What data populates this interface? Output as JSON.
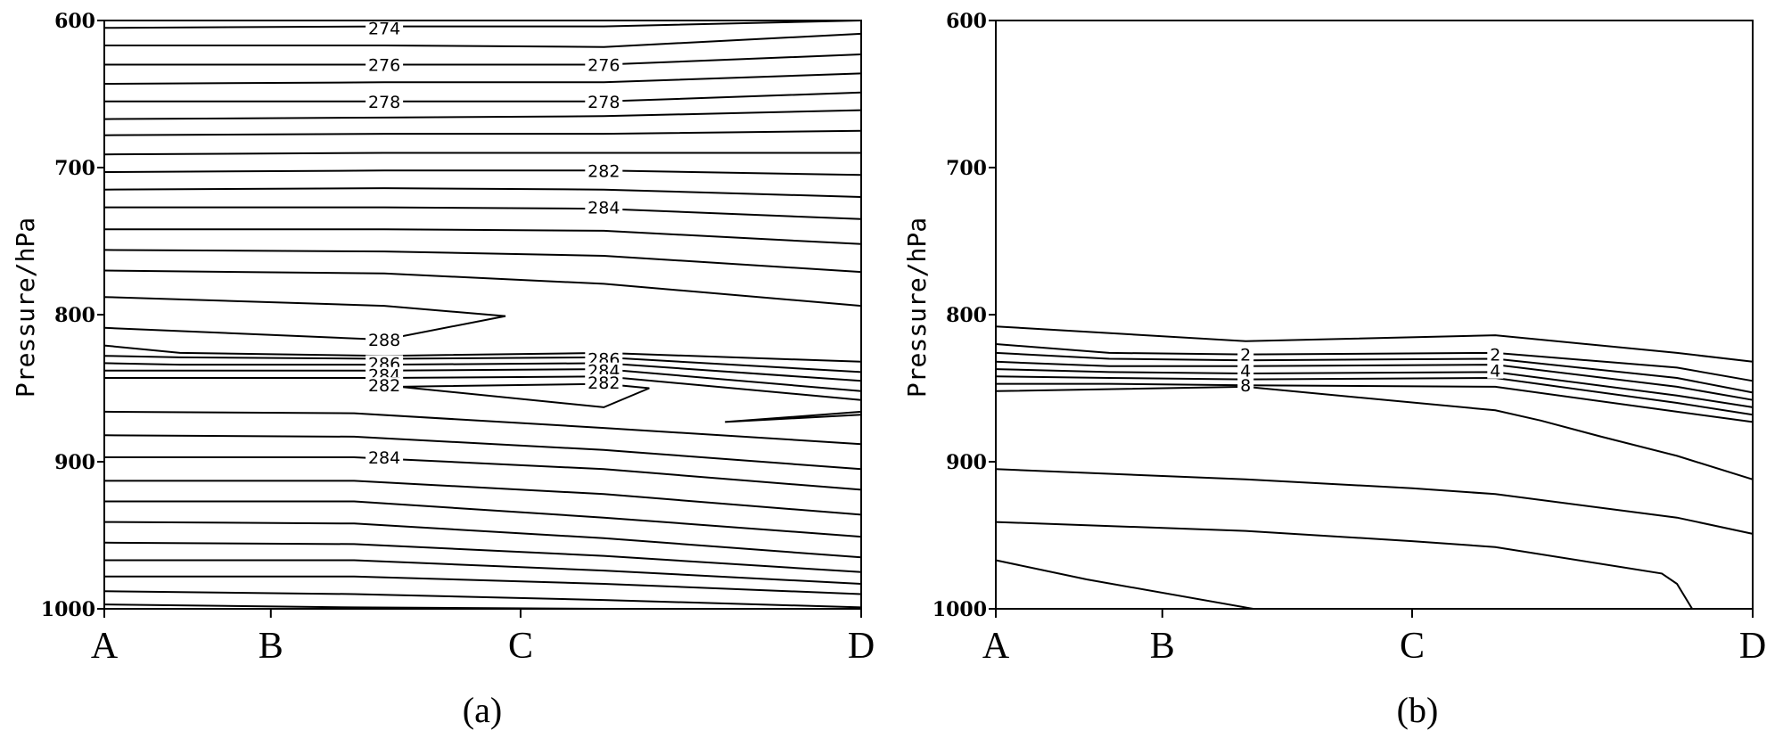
{
  "chart_data": [
    {
      "type": "contour",
      "panel_label": "(a)",
      "ylabel": "Pressure/hPa",
      "y_axis": {
        "range": [
          1000,
          600
        ],
        "inverted": true,
        "ticks": [
          "600",
          "700",
          "800",
          "900",
          "1000"
        ]
      },
      "x_axis": {
        "categories": [
          "A",
          "B",
          "C",
          "D"
        ],
        "positions": [
          0,
          0.22,
          0.55,
          1.0
        ]
      },
      "contour_labels": [
        {
          "text": "274",
          "x": 0.37,
          "p": 605
        },
        {
          "text": "276",
          "x": 0.37,
          "p": 630
        },
        {
          "text": "276",
          "x": 0.66,
          "p": 630
        },
        {
          "text": "278",
          "x": 0.37,
          "p": 655
        },
        {
          "text": "278",
          "x": 0.66,
          "p": 655
        },
        {
          "text": "282",
          "x": 0.66,
          "p": 702
        },
        {
          "text": "284",
          "x": 0.66,
          "p": 727
        },
        {
          "text": "288",
          "x": 0.37,
          "p": 817
        },
        {
          "text": "286",
          "x": 0.37,
          "p": 833
        },
        {
          "text": "284",
          "x": 0.37,
          "p": 841
        },
        {
          "text": "282",
          "x": 0.37,
          "p": 848
        },
        {
          "text": "286",
          "x": 0.66,
          "p": 830
        },
        {
          "text": "284",
          "x": 0.66,
          "p": 838
        },
        {
          "text": "282",
          "x": 0.66,
          "p": 846
        },
        {
          "text": "284",
          "x": 0.37,
          "p": 897
        }
      ],
      "contours": [
        {
          "x": [
            0,
            0.37,
            0.66,
            1.0
          ],
          "p": [
            605,
            604,
            604,
            600
          ]
        },
        {
          "x": [
            0,
            0.37,
            0.66,
            1.0
          ],
          "p": [
            617,
            617,
            618,
            609
          ]
        },
        {
          "x": [
            0,
            0.37,
            0.66,
            1.0
          ],
          "p": [
            630,
            630,
            630,
            623
          ]
        },
        {
          "x": [
            0,
            0.37,
            0.66,
            1.0
          ],
          "p": [
            643,
            642,
            642,
            636
          ]
        },
        {
          "x": [
            0,
            0.37,
            0.66,
            1.0
          ],
          "p": [
            655,
            655,
            655,
            649
          ]
        },
        {
          "x": [
            0,
            0.37,
            0.66,
            1.0
          ],
          "p": [
            667,
            666,
            665,
            661
          ]
        },
        {
          "x": [
            0,
            0.37,
            0.66,
            1.0
          ],
          "p": [
            678,
            677,
            677,
            675
          ]
        },
        {
          "x": [
            0,
            0.37,
            0.66,
            1.0
          ],
          "p": [
            691,
            690,
            690,
            690
          ]
        },
        {
          "x": [
            0,
            0.37,
            0.66,
            1.0
          ],
          "p": [
            703,
            702,
            702,
            705
          ]
        },
        {
          "x": [
            0,
            0.37,
            0.66,
            1.0
          ],
          "p": [
            715,
            714,
            715,
            720
          ]
        },
        {
          "x": [
            0,
            0.37,
            0.66,
            1.0
          ],
          "p": [
            727,
            727,
            728,
            735
          ]
        },
        {
          "x": [
            0,
            0.37,
            0.66,
            1.0
          ],
          "p": [
            742,
            742,
            743,
            752
          ]
        },
        {
          "x": [
            0,
            0.37,
            0.66,
            1.0
          ],
          "p": [
            756,
            757,
            760,
            771
          ]
        },
        {
          "x": [
            0,
            0.37,
            0.66,
            1.0
          ],
          "p": [
            770,
            772,
            779,
            794
          ]
        },
        {
          "x": [
            0,
            0.37,
            0.53,
            0.37,
            0
          ],
          "p": [
            788,
            794,
            801,
            817,
            809
          ]
        },
        {
          "x": [
            0,
            0.1,
            0.37,
            0.66,
            1.0
          ],
          "p": [
            821,
            826,
            828,
            826,
            832
          ]
        },
        {
          "x": [
            0,
            0.1,
            0.37,
            0.66,
            1.0
          ],
          "p": [
            828,
            829,
            830,
            829,
            839
          ]
        },
        {
          "x": [
            0,
            0.1,
            0.37,
            0.66,
            1.0
          ],
          "p": [
            833,
            834,
            834,
            833,
            845
          ]
        },
        {
          "x": [
            0,
            0.1,
            0.37,
            0.66,
            1.0
          ],
          "p": [
            838,
            838,
            838,
            837,
            852
          ]
        },
        {
          "x": [
            0,
            0.1,
            0.37,
            0.66,
            1.0
          ],
          "p": [
            843,
            843,
            843,
            842,
            858
          ]
        },
        {
          "x": [
            0.39,
            0.66,
            0.72,
            0.66,
            0.39
          ],
          "p": [
            849,
            847,
            850,
            863,
            849
          ]
        },
        {
          "x": [
            1.0,
            0.82,
            1.0
          ],
          "p": [
            866,
            873,
            868
          ]
        },
        {
          "x": [
            0,
            0.33,
            0.66,
            1.0
          ],
          "p": [
            866,
            867,
            877,
            888
          ]
        },
        {
          "x": [
            0,
            0.33,
            0.66,
            1.0
          ],
          "p": [
            882,
            883,
            892,
            905
          ]
        },
        {
          "x": [
            0,
            0.33,
            0.66,
            1.0
          ],
          "p": [
            897,
            897,
            905,
            919
          ]
        },
        {
          "x": [
            0,
            0.33,
            0.66,
            1.0
          ],
          "p": [
            913,
            913,
            922,
            936
          ]
        },
        {
          "x": [
            0,
            0.33,
            0.66,
            1.0
          ],
          "p": [
            927,
            927,
            938,
            951
          ]
        },
        {
          "x": [
            0,
            0.33,
            0.66,
            1.0
          ],
          "p": [
            941,
            942,
            952,
            965
          ]
        },
        {
          "x": [
            0,
            0.33,
            0.66,
            1.0
          ],
          "p": [
            955,
            956,
            964,
            975
          ]
        },
        {
          "x": [
            0,
            0.33,
            0.66,
            1.0
          ],
          "p": [
            967,
            967,
            974,
            983
          ]
        },
        {
          "x": [
            0,
            0.33,
            0.66,
            1.0
          ],
          "p": [
            978,
            978,
            983,
            990
          ]
        },
        {
          "x": [
            0,
            0.33,
            0.66,
            1.0
          ],
          "p": [
            988,
            990,
            994,
            999
          ]
        },
        {
          "x": [
            0,
            0.33,
            0.66,
            1.0
          ],
          "p": [
            997,
            999,
            1000,
            1000
          ]
        }
      ]
    },
    {
      "type": "contour",
      "panel_label": "(b)",
      "ylabel": "Pressure/hPa",
      "y_axis": {
        "range": [
          1000,
          600
        ],
        "inverted": true,
        "ticks": [
          "600",
          "700",
          "800",
          "900",
          "1000"
        ]
      },
      "x_axis": {
        "categories": [
          "A",
          "B",
          "C",
          "D"
        ],
        "positions": [
          0,
          0.22,
          0.55,
          1.0
        ]
      },
      "contour_labels": [
        {
          "text": "2",
          "x": 0.33,
          "p": 827
        },
        {
          "text": "4",
          "x": 0.33,
          "p": 838
        },
        {
          "text": "8",
          "x": 0.33,
          "p": 848
        },
        {
          "text": "2",
          "x": 0.66,
          "p": 827
        },
        {
          "text": "4",
          "x": 0.66,
          "p": 838
        }
      ],
      "contours": [
        {
          "x": [
            0,
            0.33,
            0.66,
            0.9,
            1.0
          ],
          "p": [
            808,
            818,
            814,
            826,
            832
          ]
        },
        {
          "x": [
            0,
            0.15,
            0.33,
            0.66,
            0.9,
            1.0
          ],
          "p": [
            820,
            826,
            827,
            826,
            836,
            845
          ]
        },
        {
          "x": [
            0,
            0.15,
            0.33,
            0.66,
            0.9,
            1.0
          ],
          "p": [
            826,
            830,
            831,
            830,
            843,
            853
          ]
        },
        {
          "x": [
            0,
            0.15,
            0.33,
            0.66,
            0.9,
            1.0
          ],
          "p": [
            832,
            835,
            835,
            834,
            849,
            858
          ]
        },
        {
          "x": [
            0,
            0.15,
            0.33,
            0.66,
            0.9,
            1.0
          ],
          "p": [
            837,
            839,
            840,
            839,
            855,
            863
          ]
        },
        {
          "x": [
            0,
            0.15,
            0.33,
            0.66,
            0.9,
            1.0
          ],
          "p": [
            842,
            843,
            844,
            843,
            860,
            868
          ]
        },
        {
          "x": [
            0,
            0.15,
            0.33,
            0.66,
            0.9,
            1.0
          ],
          "p": [
            847,
            847,
            848,
            849,
            866,
            873
          ]
        },
        {
          "x": [
            0,
            0.33,
            0.66,
            0.72,
            0.8,
            0.9,
            1.0
          ],
          "p": [
            852,
            849,
            865,
            872,
            883,
            896,
            912
          ]
        },
        {
          "x": [
            0,
            0.33,
            0.55,
            0.66,
            0.9,
            1.0
          ],
          "p": [
            905,
            912,
            918,
            922,
            938,
            949
          ]
        },
        {
          "x": [
            0,
            0.33,
            0.55,
            0.66,
            0.88,
            0.9,
            0.92
          ],
          "p": [
            941,
            947,
            954,
            958,
            976,
            983,
            1000
          ]
        },
        {
          "x": [
            0,
            0.12,
            0.34
          ],
          "p": [
            967,
            980,
            1000
          ]
        }
      ]
    }
  ]
}
